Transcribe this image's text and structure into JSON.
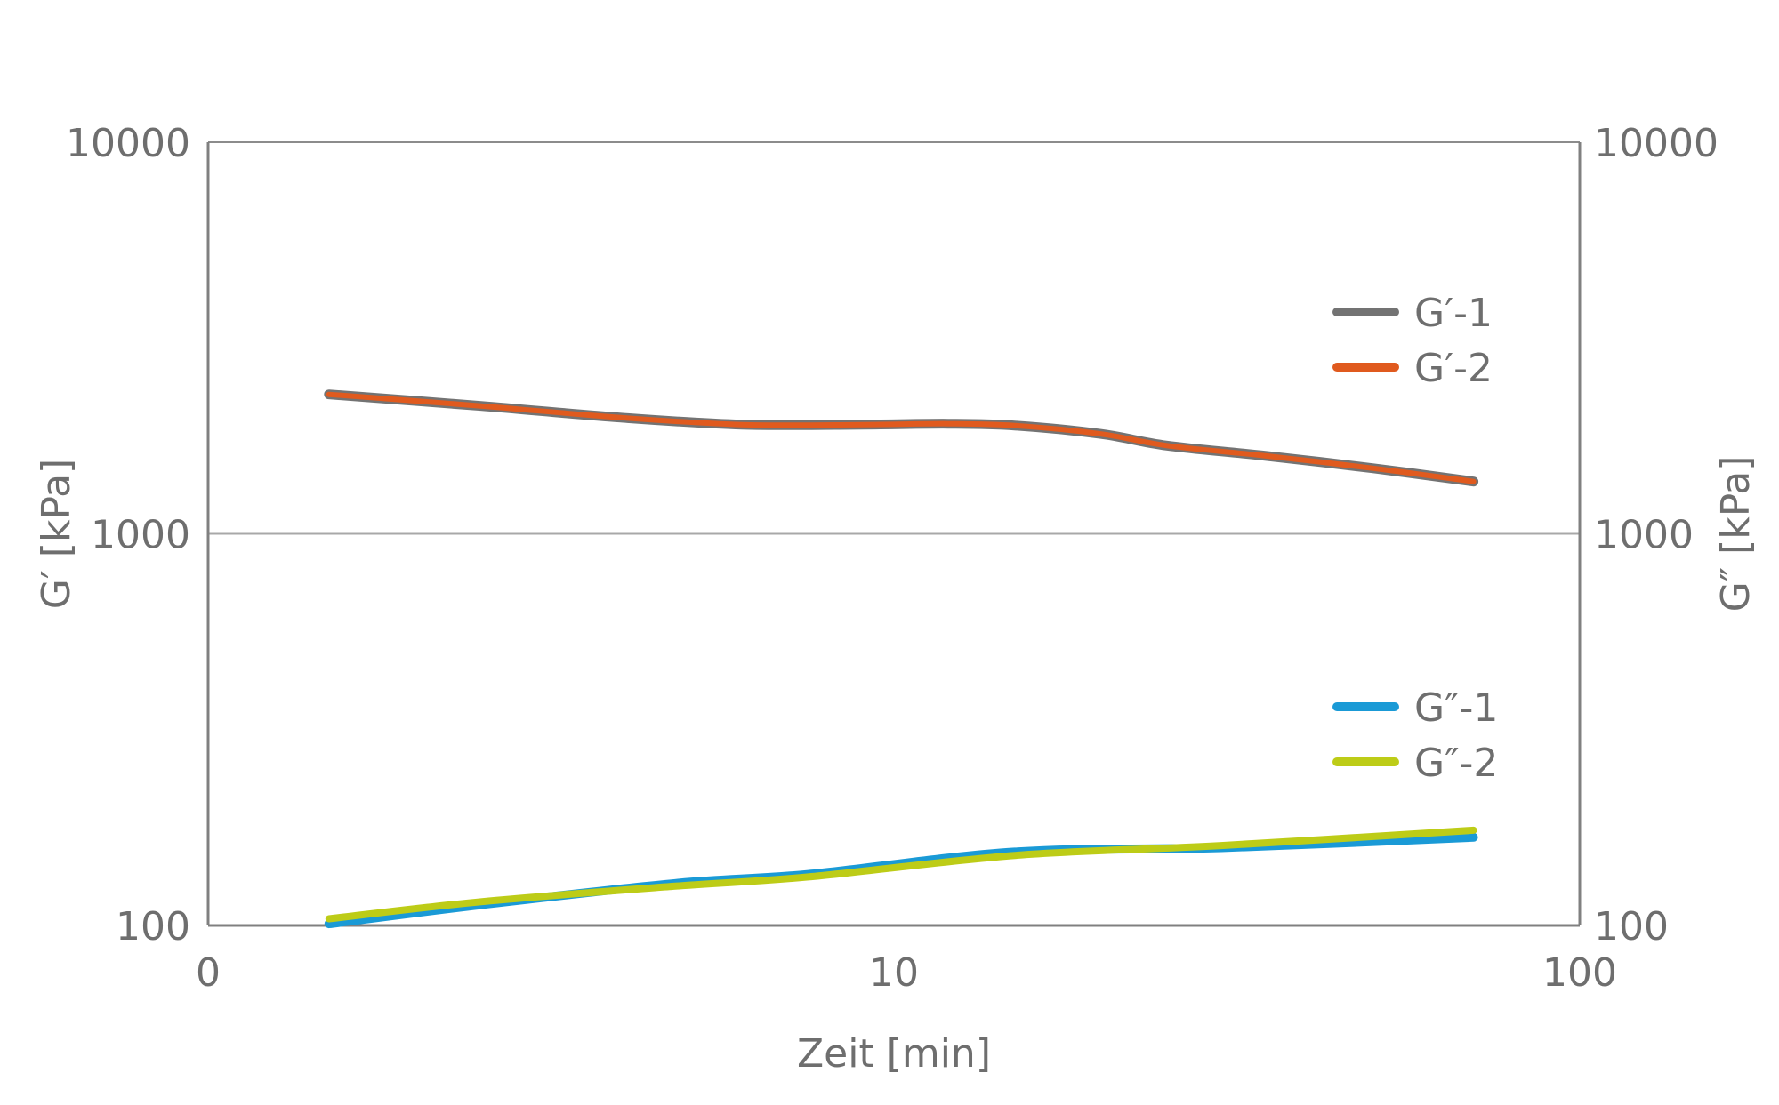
{
  "chart_data": {
    "type": "line",
    "title": "",
    "xlabel": "Zeit [min]",
    "ylabel_left": "G′ [kPa]",
    "ylabel_right": "G″ [kPa]",
    "x_scale": "log",
    "y_scale": "log",
    "xlim": [
      1,
      100
    ],
    "ylim": [
      100,
      10000
    ],
    "x_tick_labels": [
      "0",
      "10",
      "100"
    ],
    "y_tick_labels": [
      "100",
      "1000",
      "10000"
    ],
    "grid": "horizontal at 1000",
    "legend_position": "right",
    "series": [
      {
        "name": "G′-1",
        "color": "#737373",
        "x": [
          1.5,
          2.5,
          4,
          6,
          9,
          12,
          15,
          20,
          25,
          35,
          50,
          70
        ],
        "y": [
          2270,
          2120,
          1980,
          1900,
          1900,
          1910,
          1890,
          1800,
          1680,
          1580,
          1470,
          1360
        ]
      },
      {
        "name": "G′-2",
        "color": "#e05a1e",
        "x": [
          1.5,
          2.5,
          4,
          6,
          9,
          12,
          15,
          20,
          25,
          35,
          50,
          70
        ],
        "y": [
          2270,
          2120,
          1980,
          1900,
          1900,
          1910,
          1890,
          1800,
          1680,
          1580,
          1470,
          1360
        ]
      },
      {
        "name": "G″-1",
        "color": "#1a9ad6",
        "x": [
          1.5,
          2.5,
          4.8,
          7.5,
          15,
          30,
          70
        ],
        "y": [
          101,
          113,
          128,
          135,
          154,
          158,
          168
        ]
      },
      {
        "name": "G″-2",
        "color": "#bdcc17",
        "x": [
          1.5,
          2.5,
          4.8,
          7.5,
          15,
          30,
          70
        ],
        "y": [
          104,
          115,
          126,
          133,
          151,
          160,
          175
        ]
      }
    ]
  }
}
